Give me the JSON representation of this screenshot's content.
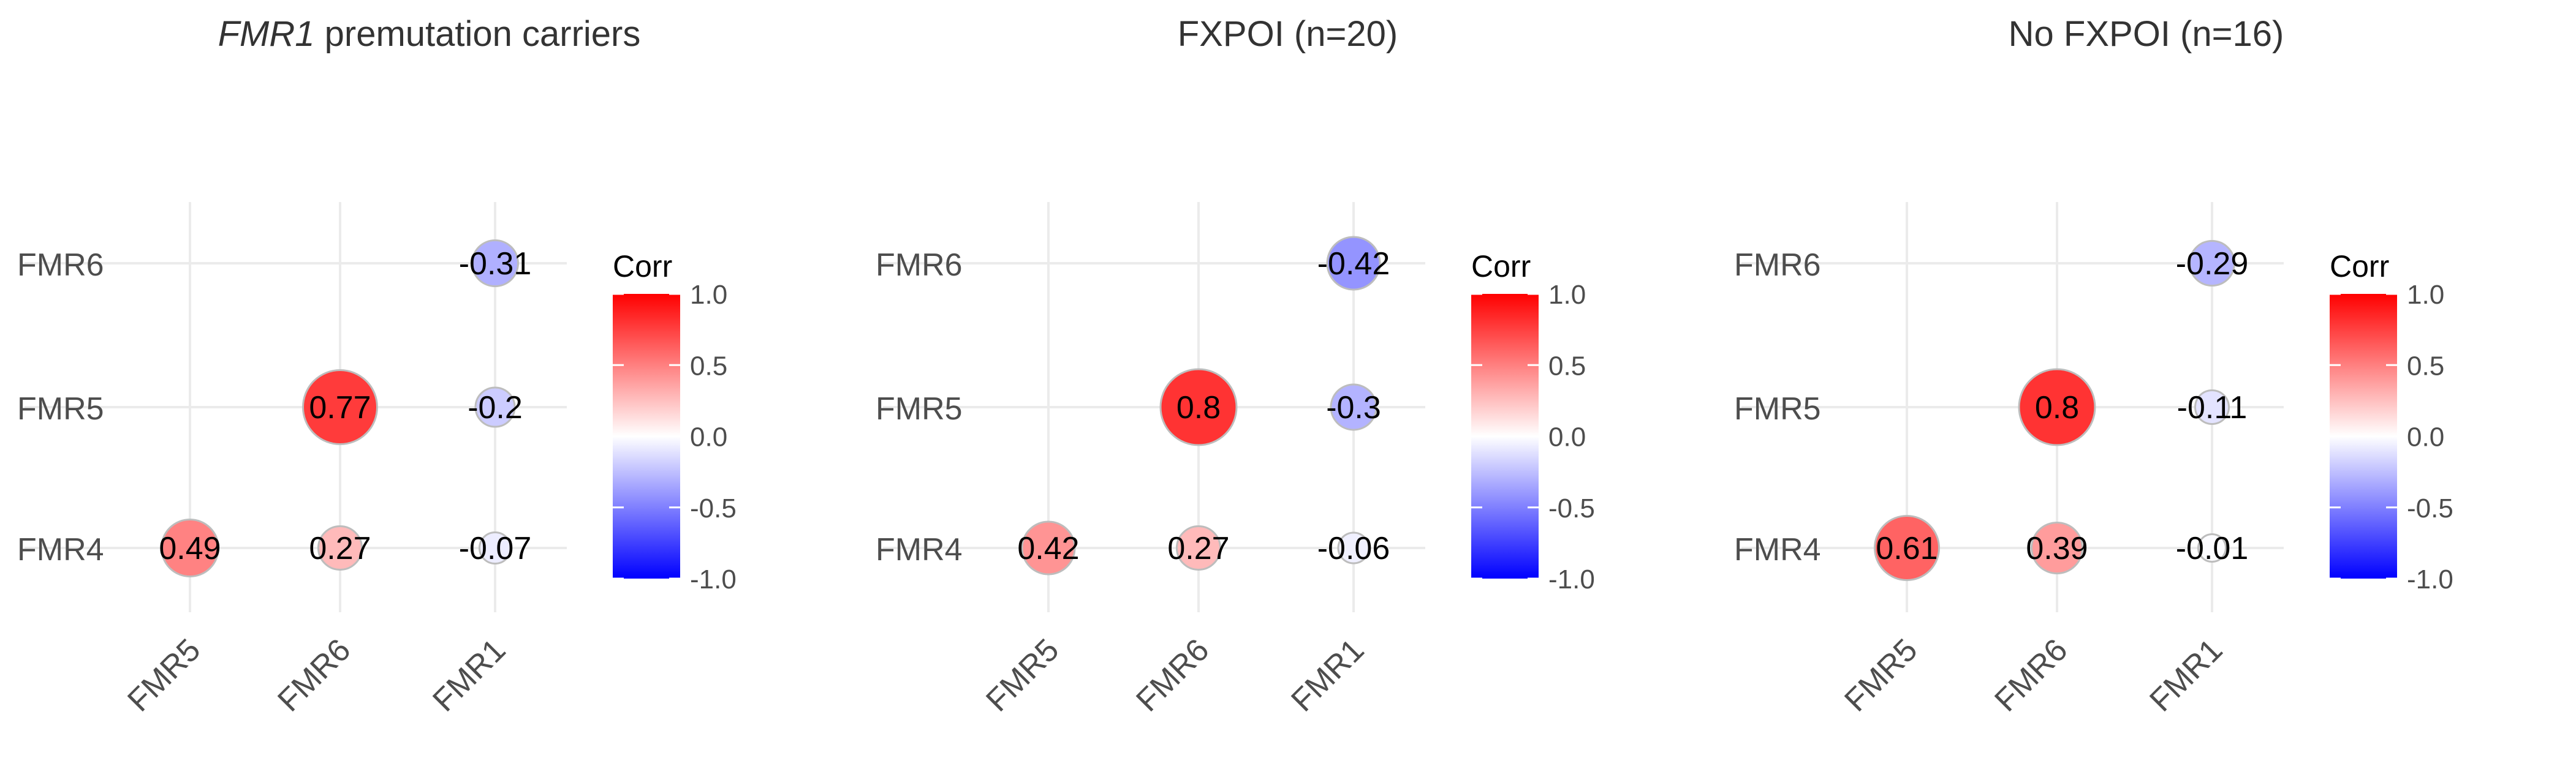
{
  "chart_data": [
    {
      "type": "correlogram",
      "title_italic": "FMR1",
      "title": " premutation carriers",
      "x_categories": [
        "FMR5",
        "FMR6",
        "FMR1"
      ],
      "y_categories": [
        "FMR4",
        "FMR5",
        "FMR6"
      ],
      "cells": [
        {
          "x": "FMR5",
          "y": "FMR4",
          "value": 0.49,
          "label": "0.49"
        },
        {
          "x": "FMR6",
          "y": "FMR4",
          "value": 0.27,
          "label": "0.27"
        },
        {
          "x": "FMR1",
          "y": "FMR4",
          "value": -0.07,
          "label": "-0.07"
        },
        {
          "x": "FMR6",
          "y": "FMR5",
          "value": 0.77,
          "label": "0.77"
        },
        {
          "x": "FMR1",
          "y": "FMR5",
          "value": -0.2,
          "label": "-0.2"
        },
        {
          "x": "FMR1",
          "y": "FMR6",
          "value": -0.31,
          "label": "-0.31"
        }
      ],
      "legend": {
        "title": "Corr",
        "range": [
          -1,
          1
        ],
        "ticks": [
          "1.0",
          "0.5",
          "0.0",
          "-0.5",
          "-1.0"
        ],
        "position": "right"
      },
      "grid": true
    },
    {
      "type": "correlogram",
      "title_italic": "",
      "title": "FXPOI (n=20)",
      "x_categories": [
        "FMR5",
        "FMR6",
        "FMR1"
      ],
      "y_categories": [
        "FMR4",
        "FMR5",
        "FMR6"
      ],
      "cells": [
        {
          "x": "FMR5",
          "y": "FMR4",
          "value": 0.42,
          "label": "0.42"
        },
        {
          "x": "FMR6",
          "y": "FMR4",
          "value": 0.27,
          "label": "0.27"
        },
        {
          "x": "FMR1",
          "y": "FMR4",
          "value": -0.06,
          "label": "-0.06"
        },
        {
          "x": "FMR6",
          "y": "FMR5",
          "value": 0.8,
          "label": "0.8"
        },
        {
          "x": "FMR1",
          "y": "FMR5",
          "value": -0.3,
          "label": "-0.3"
        },
        {
          "x": "FMR1",
          "y": "FMR6",
          "value": -0.42,
          "label": "-0.42"
        }
      ],
      "legend": {
        "title": "Corr",
        "range": [
          -1,
          1
        ],
        "ticks": [
          "1.0",
          "0.5",
          "0.0",
          "-0.5",
          "-1.0"
        ],
        "position": "right"
      },
      "grid": true
    },
    {
      "type": "correlogram",
      "title_italic": "",
      "title": "No  FXPOI (n=16)",
      "x_categories": [
        "FMR5",
        "FMR6",
        "FMR1"
      ],
      "y_categories": [
        "FMR4",
        "FMR5",
        "FMR6"
      ],
      "cells": [
        {
          "x": "FMR5",
          "y": "FMR4",
          "value": 0.61,
          "label": "0.61"
        },
        {
          "x": "FMR6",
          "y": "FMR4",
          "value": 0.39,
          "label": "0.39"
        },
        {
          "x": "FMR1",
          "y": "FMR4",
          "value": -0.01,
          "label": "-0.01"
        },
        {
          "x": "FMR6",
          "y": "FMR5",
          "value": 0.8,
          "label": "0.8"
        },
        {
          "x": "FMR1",
          "y": "FMR5",
          "value": -0.11,
          "label": "-0.11"
        },
        {
          "x": "FMR1",
          "y": "FMR6",
          "value": -0.29,
          "label": "-0.29"
        }
      ],
      "legend": {
        "title": "Corr",
        "range": [
          -1,
          1
        ],
        "ticks": [
          "1.0",
          "0.5",
          "0.0",
          "-0.5",
          "-1.0"
        ],
        "position": "right"
      },
      "grid": true
    }
  ],
  "colors": {
    "high": "#ff0000",
    "mid": "#ffffff",
    "low": "#0000ff",
    "grid": "#ebebeb",
    "text": "#4d4d4d"
  }
}
